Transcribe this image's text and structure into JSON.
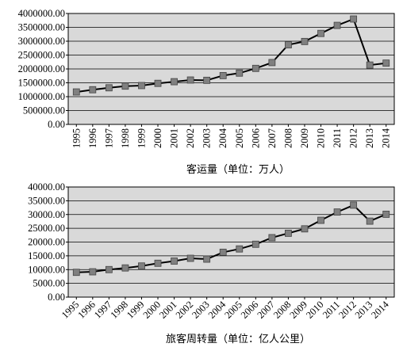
{
  "chart_data": [
    {
      "type": "line",
      "title": "客运量（单位：万人）",
      "x": [
        "1995",
        "1996",
        "1997",
        "1998",
        "1999",
        "2000",
        "2001",
        "2002",
        "2003",
        "2004",
        "2005",
        "2006",
        "2007",
        "2008",
        "2009",
        "2010",
        "2011",
        "2012",
        "2013",
        "2014"
      ],
      "values": [
        1170000,
        1250000,
        1320000,
        1380000,
        1400000,
        1480000,
        1540000,
        1600000,
        1590000,
        1760000,
        1850000,
        2020000,
        2230000,
        2870000,
        2990000,
        3280000,
        3570000,
        3800000,
        2140000,
        2210000
      ],
      "y_tick_labels": [
        "0.00",
        "500000.00",
        "1000000.00",
        "1500000.00",
        "2000000.00",
        "2500000.00",
        "3000000.00",
        "3500000.00",
        "4000000.00"
      ],
      "ylim": [
        0,
        4000000
      ],
      "grid": true,
      "plot_background": "#d9d9d9",
      "line_color": "#000000",
      "marker_color": "#808080"
    },
    {
      "type": "line",
      "title": "旅客周转量（单位：亿人公里）",
      "x": [
        "1995",
        "1996",
        "1997",
        "1998",
        "1999",
        "2000",
        "2001",
        "2002",
        "2003",
        "2004",
        "2005",
        "2006",
        "2007",
        "2008",
        "2009",
        "2010",
        "2011",
        "2012",
        "2013",
        "2014"
      ],
      "values": [
        9000,
        9200,
        10000,
        10600,
        11300,
        12300,
        13100,
        14100,
        13800,
        16300,
        17500,
        19200,
        21600,
        23200,
        24800,
        27900,
        30900,
        33400,
        27600,
        30100
      ],
      "y_tick_labels": [
        "0.00",
        "5000.00",
        "10000.00",
        "15000.00",
        "20000.00",
        "25000.00",
        "30000.00",
        "35000.00",
        "40000.00"
      ],
      "ylim": [
        0,
        40000
      ],
      "grid": true,
      "plot_background": "#d9d9d9",
      "line_color": "#000000",
      "marker_color": "#808080"
    }
  ]
}
